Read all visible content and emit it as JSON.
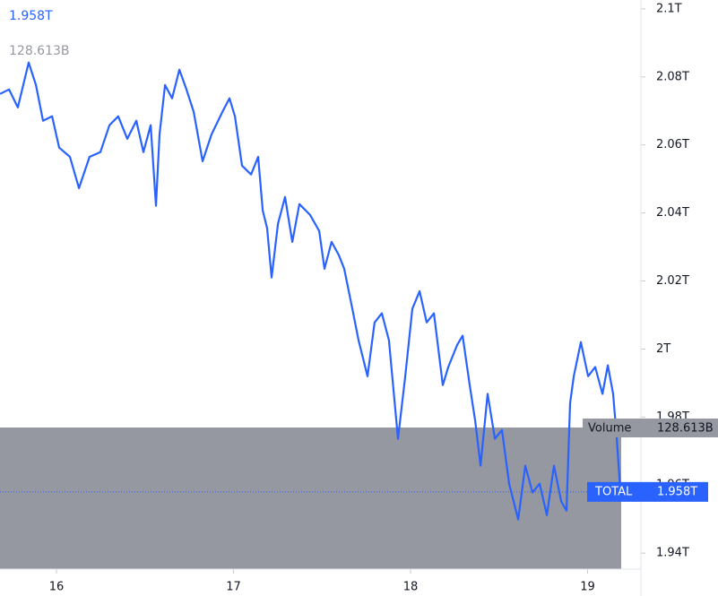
{
  "chart_data": {
    "type": "line",
    "legend_value": "1.958T",
    "volume_value": "128.613B",
    "volume_name": "Volume",
    "series": [
      {
        "name": "TOTAL",
        "value_label": "1.958T",
        "color": "#2962ff",
        "x": [
          15.681,
          15.732,
          15.782,
          15.843,
          15.884,
          15.924,
          15.975,
          16.015,
          16.076,
          16.127,
          16.187,
          16.248,
          16.299,
          16.349,
          16.4,
          16.451,
          16.491,
          16.532,
          16.562,
          16.582,
          16.613,
          16.653,
          16.694,
          16.734,
          16.775,
          16.825,
          16.876,
          16.937,
          16.977,
          17.008,
          17.048,
          17.099,
          17.139,
          17.165,
          17.19,
          17.215,
          17.251,
          17.291,
          17.332,
          17.372,
          17.433,
          17.484,
          17.514,
          17.554,
          17.595,
          17.625,
          17.666,
          17.706,
          17.757,
          17.797,
          17.838,
          17.878,
          17.929,
          17.97,
          18.01,
          18.051,
          18.091,
          18.132,
          18.182,
          18.213,
          18.263,
          18.294,
          18.334,
          18.365,
          18.395,
          18.435,
          18.476,
          18.516,
          18.557,
          18.608,
          18.648,
          18.689,
          18.729,
          18.77,
          18.81,
          18.851,
          18.881,
          18.901,
          18.922,
          18.962,
          19.003,
          19.043,
          19.084,
          19.114,
          19.144,
          19.165,
          19.185
        ],
        "values": [
          2.075,
          2.0763,
          2.071,
          2.0842,
          2.0776,
          2.0671,
          2.0684,
          2.0592,
          2.0565,
          2.0473,
          2.0565,
          2.0579,
          2.0658,
          2.0684,
          2.0618,
          2.0671,
          2.0579,
          2.0658,
          2.0421,
          2.0631,
          2.0776,
          2.0737,
          2.0821,
          2.0763,
          2.0697,
          2.0552,
          2.0631,
          2.0697,
          2.0737,
          2.0684,
          2.0539,
          2.0513,
          2.0565,
          2.0407,
          2.0355,
          2.021,
          2.0368,
          2.0447,
          2.0315,
          2.0426,
          2.0394,
          2.0347,
          2.0236,
          2.0315,
          2.0276,
          2.0236,
          2.0131,
          2.0026,
          1.992,
          2.0078,
          2.0105,
          2.0026,
          1.9736,
          1.992,
          2.0118,
          2.017,
          2.0078,
          2.0105,
          1.9894,
          1.9947,
          2.0012,
          2.0039,
          1.9894,
          1.9789,
          1.9657,
          1.9868,
          1.9736,
          1.9762,
          1.9604,
          1.9499,
          1.9657,
          1.9578,
          1.9604,
          1.9512,
          1.9657,
          1.9552,
          1.9525,
          1.9841,
          1.992,
          2.002,
          1.992,
          1.9947,
          1.9868,
          1.9952,
          1.9868,
          1.9736,
          1.958
        ]
      }
    ],
    "xlim": [
      15.681,
      19.301
    ],
    "xticks": [
      16,
      17,
      18,
      19
    ],
    "ylim": [
      1.9353,
      2.1026
    ],
    "yticks": [
      {
        "value": 2.1,
        "label": "2.1T"
      },
      {
        "value": 2.08,
        "label": "2.08T"
      },
      {
        "value": 2.06,
        "label": "2.06T"
      },
      {
        "value": 2.04,
        "label": "2.04T"
      },
      {
        "value": 2.02,
        "label": "2.02T"
      },
      {
        "value": 2,
        "label": "2T"
      },
      {
        "value": 1.98,
        "label": "1.98T"
      },
      {
        "value": 1.96,
        "label": "1.96T"
      },
      {
        "value": 1.94,
        "label": "1.94T"
      }
    ]
  }
}
